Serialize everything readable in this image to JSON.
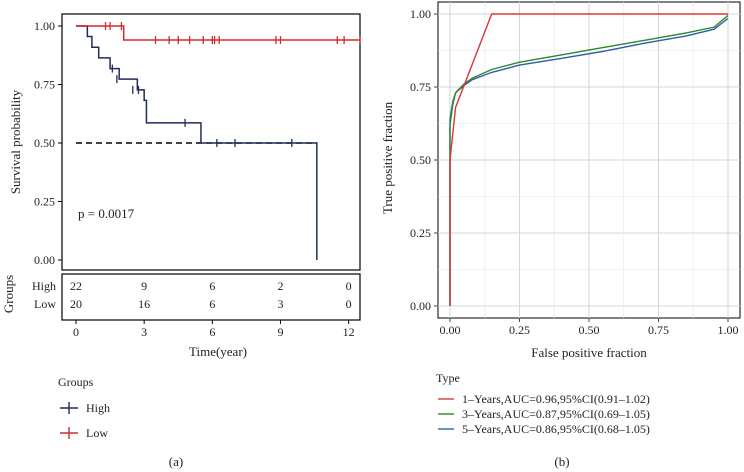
{
  "chart_data": [
    {
      "type": "line",
      "subtype": "kaplan-meier",
      "panel_label": "(a)",
      "xlabel": "Time(year)",
      "ylabel": "Survival probability",
      "xlim": [
        0,
        12.5
      ],
      "ylim": [
        0,
        1
      ],
      "x_ticks": [
        0,
        3,
        6,
        9,
        12
      ],
      "y_ticks": [
        "0.00",
        "0.25",
        "0.50",
        "0.75",
        "1.00"
      ],
      "pvalue_text": "p = 0.0017",
      "median_line_y": 0.5,
      "colors": {
        "High": "#1f2d5c",
        "Low": "#d12b2b",
        "median": "#000000"
      },
      "series": [
        {
          "name": "High",
          "steps": [
            [
              0,
              1.0
            ],
            [
              0.5,
              0.955
            ],
            [
              0.7,
              0.909
            ],
            [
              1.0,
              0.864
            ],
            [
              1.5,
              0.818
            ],
            [
              1.9,
              0.773
            ],
            [
              2.7,
              0.727
            ],
            [
              3.0,
              0.682
            ],
            [
              3.1,
              0.586
            ],
            [
              5.5,
              0.5
            ],
            [
              10.6,
              0.5
            ],
            [
              10.6,
              0.0
            ]
          ],
          "censor_x": [
            1.6,
            1.8,
            2.5,
            2.75,
            4.8,
            6.2,
            7.0,
            9.5
          ],
          "censor_y": [
            0.818,
            0.773,
            0.727,
            0.727,
            0.586,
            0.5,
            0.5,
            0.5
          ]
        },
        {
          "name": "Low",
          "steps": [
            [
              0,
              1.0
            ],
            [
              2.1,
              0.94
            ],
            [
              12.5,
              0.94
            ]
          ],
          "censor_x": [
            1.3,
            1.5,
            2.0,
            3.5,
            4.1,
            4.5,
            5.0,
            5.6,
            6.0,
            6.1,
            6.3,
            8.8,
            9.0,
            11.5,
            11.8,
            12.5
          ],
          "censor_y": [
            1.0,
            1.0,
            1.0,
            0.94,
            0.94,
            0.94,
            0.94,
            0.94,
            0.94,
            0.94,
            0.94,
            0.94,
            0.94,
            0.94,
            0.94,
            0.94
          ]
        }
      ],
      "risk_table": {
        "title": "Groups",
        "rows": [
          {
            "name": "High",
            "counts": [
              "22",
              "9",
              "6",
              "2",
              "0"
            ]
          },
          {
            "name": "Low",
            "counts": [
              "20",
              "16",
              "6",
              "3",
              "0"
            ]
          }
        ],
        "x": [
          0,
          3,
          6,
          9,
          12
        ]
      },
      "legend": {
        "title": "Groups",
        "items": [
          "High",
          "Low"
        ]
      }
    },
    {
      "type": "line",
      "subtype": "roc",
      "panel_label": "(b)",
      "xlabel": "False positive fraction",
      "ylabel": "True positive fraction",
      "xlim": [
        0,
        1
      ],
      "ylim": [
        0,
        1
      ],
      "x_ticks": [
        "0.00",
        "0.25",
        "0.50",
        "0.75",
        "1.00"
      ],
      "y_ticks": [
        "0.00",
        "0.25",
        "0.50",
        "0.75",
        "1.00"
      ],
      "legend": {
        "title": "Type"
      },
      "series": [
        {
          "name": "1–Years,AUC=0.96,95%CI(0.91–1.02)",
          "color": "#d8383a",
          "x": [
            0,
            0.0,
            0.02,
            0.15,
            1.0
          ],
          "y": [
            0,
            0.5,
            0.68,
            1.0,
            1.0
          ]
        },
        {
          "name": "3–Years,AUC=0.87,95%CI(0.69–1.05)",
          "color": "#2a8a2a",
          "x": [
            0,
            0.0,
            0.01,
            0.02,
            0.05,
            0.08,
            0.15,
            0.25,
            0.4,
            0.55,
            0.7,
            0.85,
            0.95,
            1.0
          ],
          "y": [
            0,
            0.62,
            0.69,
            0.73,
            0.76,
            0.78,
            0.81,
            0.835,
            0.86,
            0.885,
            0.91,
            0.935,
            0.955,
            0.995
          ]
        },
        {
          "name": "5–Years,AUC=0.86,95%CI(0.68–1.05)",
          "color": "#2f5fa8",
          "x": [
            0,
            0.0,
            0.01,
            0.02,
            0.05,
            0.08,
            0.15,
            0.25,
            0.4,
            0.55,
            0.7,
            0.85,
            0.95,
            1.0
          ],
          "y": [
            0,
            0.64,
            0.7,
            0.73,
            0.755,
            0.775,
            0.8,
            0.825,
            0.848,
            0.872,
            0.9,
            0.925,
            0.948,
            0.985
          ]
        }
      ]
    }
  ]
}
